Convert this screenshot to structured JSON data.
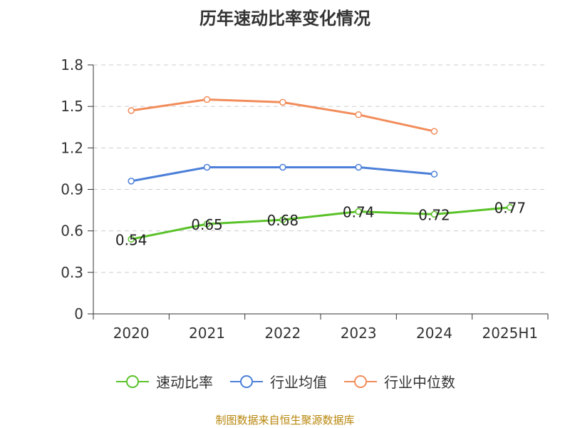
{
  "chart_data": {
    "type": "line",
    "title": "历年速动比率变化情况",
    "categories": [
      "2020",
      "2021",
      "2022",
      "2023",
      "2024",
      "2025H1"
    ],
    "y_ticks": [
      "0",
      "0.3",
      "0.6",
      "0.9",
      "1.2",
      "1.5",
      "1.8"
    ],
    "ylim": [
      0,
      1.8
    ],
    "grid": true,
    "legend_position": "bottom",
    "series": [
      {
        "name": "速动比率",
        "values": [
          0.54,
          0.65,
          0.68,
          0.74,
          0.72,
          0.77
        ],
        "color": "#5ac229",
        "show_labels": true
      },
      {
        "name": "行业均值",
        "values": [
          0.96,
          1.06,
          1.06,
          1.06,
          1.01,
          null
        ],
        "color": "#4b7fd8",
        "show_labels": false
      },
      {
        "name": "行业中位数",
        "values": [
          1.47,
          1.55,
          1.53,
          1.44,
          1.32,
          null
        ],
        "color": "#f28c5a",
        "show_labels": false
      }
    ],
    "data_labels": [
      "0.54",
      "0.65",
      "0.68",
      "0.74",
      "0.72",
      "0.77"
    ]
  },
  "source_text": "制图数据来自恒生聚源数据库"
}
